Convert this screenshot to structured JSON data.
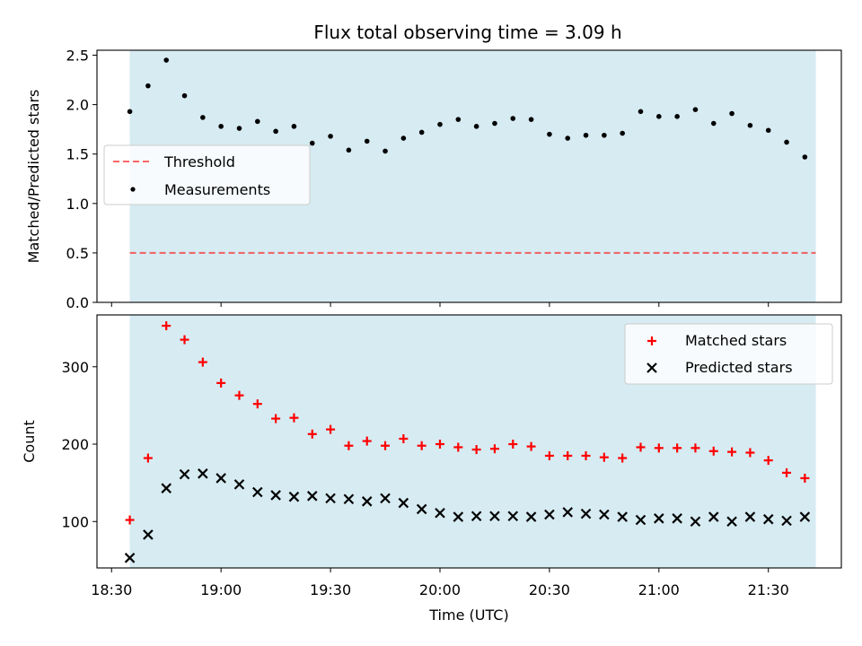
{
  "figure": {
    "title": "Flux total observing time = 3.09 h"
  },
  "colors": {
    "shade": "#add8e6",
    "threshold": "#ff0000",
    "matched": "#ff0000",
    "predicted": "#000000",
    "measurement": "#000000"
  },
  "chart_data": [
    {
      "type": "scatter",
      "ylabel": "Matched/Predicted stars",
      "xlabel": "",
      "ylim": [
        0.0,
        2.55
      ],
      "yticks": [
        "0.0",
        "0.5",
        "1.0",
        "1.5",
        "2.0",
        "2.5"
      ],
      "xlim": [
        "18:26",
        "21:50"
      ],
      "shaded_span": [
        "18:35",
        "21:43"
      ],
      "threshold": 0.5,
      "legend_placement": "center-left",
      "series": [
        {
          "name": "Measurements",
          "marker": "dot",
          "x": [
            "18:35",
            "18:40",
            "18:45",
            "18:50",
            "18:55",
            "19:00",
            "19:05",
            "19:10",
            "19:15",
            "19:20",
            "19:25",
            "19:30",
            "19:35",
            "19:40",
            "19:45",
            "19:50",
            "19:55",
            "20:00",
            "20:05",
            "20:10",
            "20:15",
            "20:20",
            "20:25",
            "20:30",
            "20:35",
            "20:40",
            "20:45",
            "20:50",
            "20:55",
            "21:00",
            "21:05",
            "21:10",
            "21:15",
            "21:20",
            "21:25",
            "21:30",
            "21:35",
            "21:40"
          ],
          "y": [
            1.93,
            2.19,
            2.45,
            2.09,
            1.87,
            1.78,
            1.76,
            1.83,
            1.73,
            1.78,
            1.61,
            1.68,
            1.54,
            1.63,
            1.53,
            1.66,
            1.72,
            1.8,
            1.85,
            1.78,
            1.81,
            1.86,
            1.85,
            1.7,
            1.66,
            1.69,
            1.69,
            1.71,
            1.93,
            1.88,
            1.88,
            1.95,
            1.81,
            1.91,
            1.79,
            1.74,
            1.62,
            1.47
          ]
        },
        {
          "name": "Threshold",
          "marker": "dashed-line",
          "y": 0.5
        }
      ]
    },
    {
      "type": "scatter",
      "ylabel": "Count",
      "xlabel": "Time (UTC)",
      "ylim": [
        40,
        367
      ],
      "yticks": [
        "100",
        "200",
        "300"
      ],
      "xticks": [
        "18:30",
        "19:00",
        "19:30",
        "20:00",
        "20:30",
        "21:00",
        "21:30"
      ],
      "xlim": [
        "18:26",
        "21:50"
      ],
      "shaded_span": [
        "18:35",
        "21:43"
      ],
      "legend_placement": "upper-right",
      "series": [
        {
          "name": "Matched stars",
          "marker": "plus",
          "x": [
            "18:35",
            "18:40",
            "18:45",
            "18:50",
            "18:55",
            "19:00",
            "19:05",
            "19:10",
            "19:15",
            "19:20",
            "19:25",
            "19:30",
            "19:35",
            "19:40",
            "19:45",
            "19:50",
            "19:55",
            "20:00",
            "20:05",
            "20:10",
            "20:15",
            "20:20",
            "20:25",
            "20:30",
            "20:35",
            "20:40",
            "20:45",
            "20:50",
            "20:55",
            "21:00",
            "21:05",
            "21:10",
            "21:15",
            "21:20",
            "21:25",
            "21:30",
            "21:35",
            "21:40"
          ],
          "y": [
            102,
            182,
            353,
            335,
            306,
            279,
            263,
            252,
            233,
            234,
            213,
            219,
            198,
            204,
            198,
            207,
            198,
            200,
            196,
            193,
            194,
            200,
            197,
            185,
            185,
            185,
            183,
            182,
            196,
            195,
            195,
            195,
            191,
            190,
            189,
            179,
            163,
            156
          ]
        },
        {
          "name": "Predicted stars",
          "marker": "x",
          "x": [
            "18:35",
            "18:40",
            "18:45",
            "18:50",
            "18:55",
            "19:00",
            "19:05",
            "19:10",
            "19:15",
            "19:20",
            "19:25",
            "19:30",
            "19:35",
            "19:40",
            "19:45",
            "19:50",
            "19:55",
            "20:00",
            "20:05",
            "20:10",
            "20:15",
            "20:20",
            "20:25",
            "20:30",
            "20:35",
            "20:40",
            "20:45",
            "20:50",
            "20:55",
            "21:00",
            "21:05",
            "21:10",
            "21:15",
            "21:20",
            "21:25",
            "21:30",
            "21:35",
            "21:40"
          ],
          "y": [
            53,
            83,
            143,
            161,
            162,
            156,
            148,
            138,
            134,
            132,
            133,
            130,
            129,
            126,
            130,
            124,
            116,
            111,
            106,
            107,
            107,
            107,
            106,
            109,
            112,
            110,
            109,
            106,
            102,
            104,
            104,
            100,
            106,
            100,
            106,
            103,
            101,
            106
          ]
        }
      ]
    }
  ]
}
